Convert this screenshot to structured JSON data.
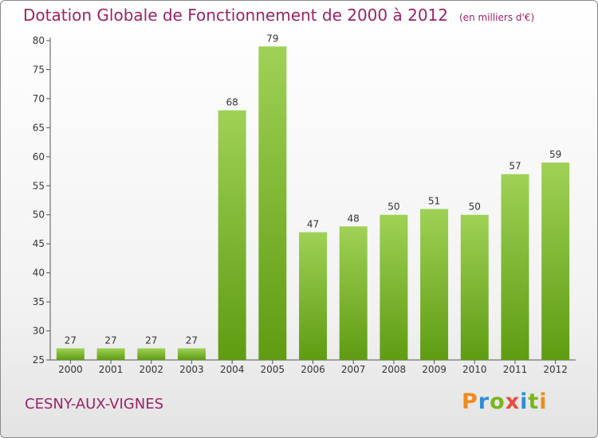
{
  "title": "Dotation Globale de Fonctionnement de 2000 à 2012",
  "unit": "(en milliers d'€)",
  "commune": "CESNY-AUX-VIGNES",
  "brand": {
    "letters": [
      "P",
      "r",
      "o",
      "x",
      "i",
      "t",
      "i"
    ],
    "colors": [
      "#ef8b1e",
      "#2c8fd6",
      "#7ab51d",
      "#e94b3c",
      "#2c8fd6",
      "#7ab51d",
      "#ef8b1e"
    ]
  },
  "colors": {
    "bar_top": "#9fd156",
    "bar_bottom": "#5f9c12",
    "title": "#9b2268"
  },
  "chart_data": {
    "type": "bar",
    "categories": [
      "2000",
      "2001",
      "2002",
      "2003",
      "2004",
      "2005",
      "2006",
      "2007",
      "2008",
      "2009",
      "2010",
      "2011",
      "2012"
    ],
    "values": [
      27,
      27,
      27,
      27,
      68,
      79,
      47,
      48,
      50,
      51,
      50,
      57,
      59
    ],
    "data_labels": [
      "27",
      "27",
      "27",
      "27",
      "68",
      "79",
      "47",
      "48",
      "50",
      "51",
      "50",
      "57",
      "59"
    ],
    "ylim": [
      25,
      80
    ],
    "yticks": [
      25,
      30,
      35,
      40,
      45,
      50,
      55,
      60,
      65,
      70,
      75,
      80
    ],
    "grid": false
  }
}
